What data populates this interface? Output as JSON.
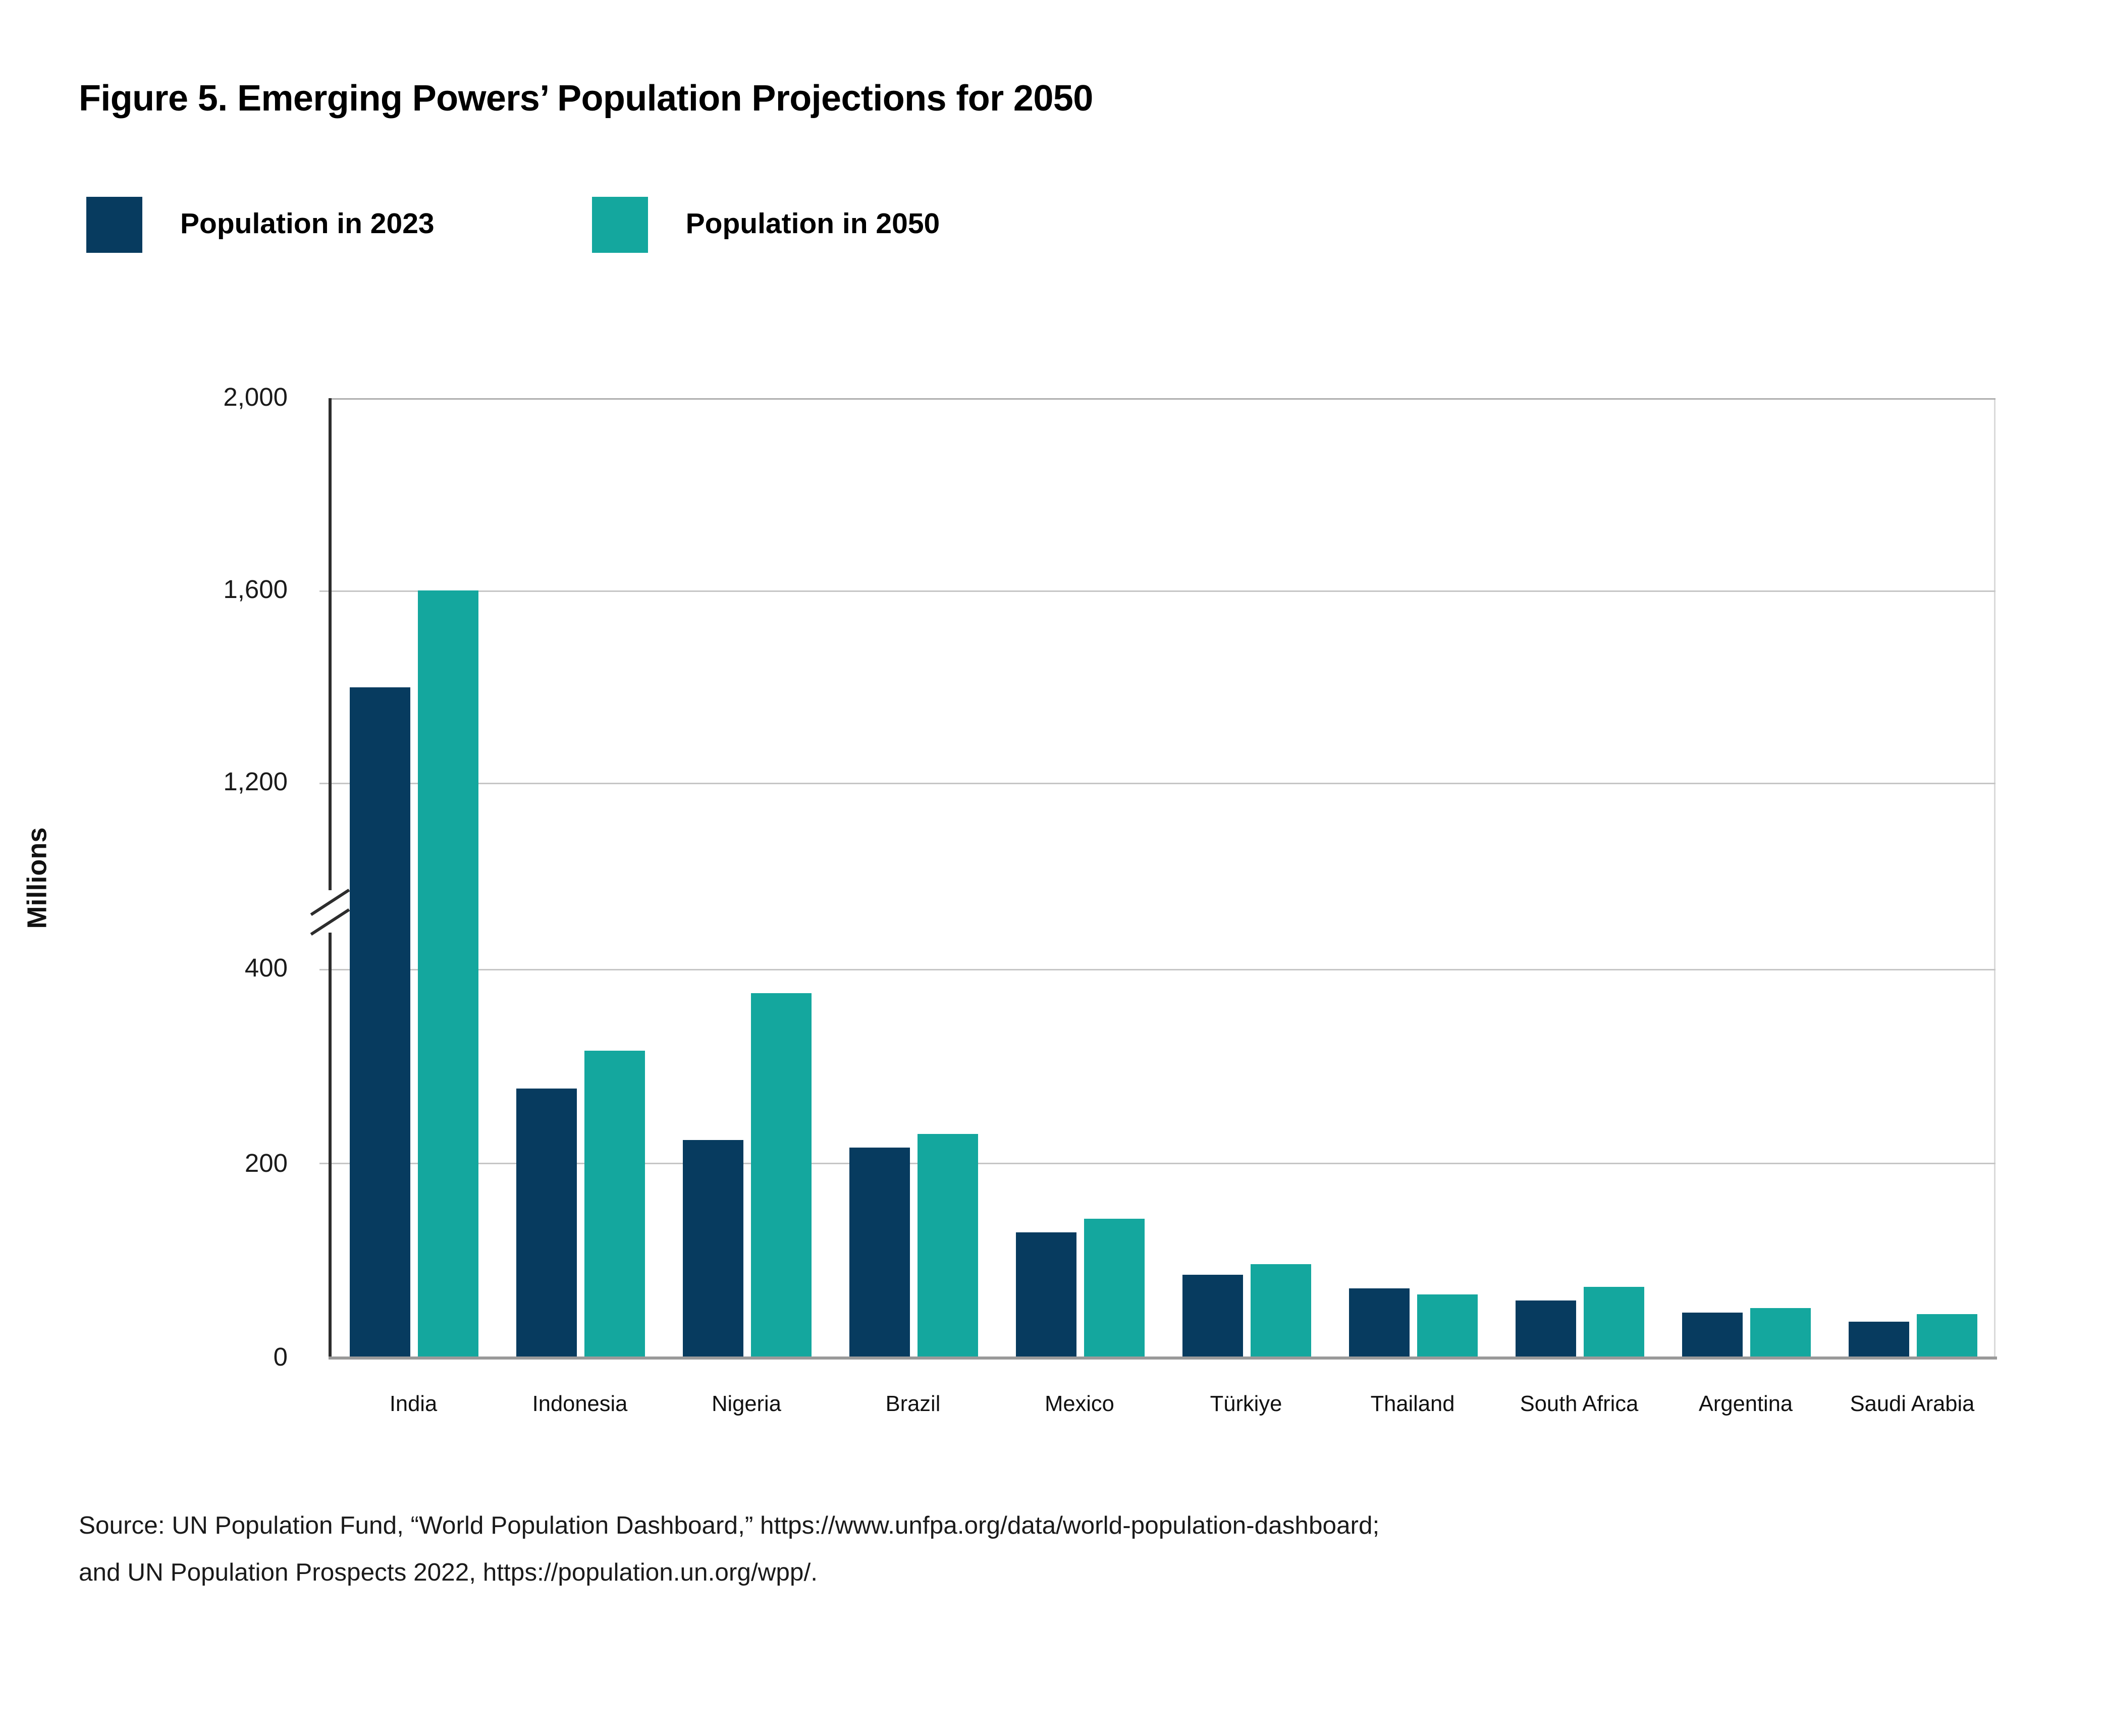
{
  "figure": {
    "title": "Figure 5. Emerging Powers’ Population Projections for 2050"
  },
  "legend": [
    {
      "label": "Population in 2023",
      "color": "#073B5F"
    },
    {
      "label": "Population in 2050",
      "color": "#14A79E"
    }
  ],
  "chart_data": {
    "type": "bar",
    "title": "Figure 5. Emerging Powers’ Population Projections for 2050",
    "xlabel": "",
    "ylabel": "Millions",
    "ylim": [
      0,
      2000
    ],
    "grid": "horizontal",
    "legend_position": "top-left",
    "categories": [
      "India",
      "Indonesia",
      "Nigeria",
      "Brazil",
      "Mexico",
      "Türkiye",
      "Thailand",
      "South Africa",
      "Argentina",
      "Saudi Arabia"
    ],
    "series": [
      {
        "name": "Population in 2023",
        "color": "#073B5F",
        "values": [
          1400,
          277,
          224,
          216,
          129,
          86,
          72,
          60,
          46,
          37
        ]
      },
      {
        "name": "Population in 2050",
        "color": "#14A79E",
        "values": [
          1600,
          317,
          375,
          231,
          144,
          96,
          66,
          74,
          52,
          45
        ]
      }
    ],
    "yticks": [
      {
        "value": 0,
        "label": "0"
      },
      {
        "value": 200,
        "label": "200"
      },
      {
        "value": 400,
        "label": "400"
      },
      {
        "value": 1200,
        "label": "1,200"
      },
      {
        "value": 1600,
        "label": "1,600"
      },
      {
        "value": 2000,
        "label": "2,000"
      }
    ],
    "axis_break": {
      "between": [
        400,
        1200
      ],
      "lower_segment_top_fraction": 0.405,
      "upper_segment_bottom_fraction": 0.599,
      "break_center_fraction": 0.465
    }
  },
  "source": {
    "line1": "Source: UN Population Fund, “World Population Dashboard,” https://www.unfpa.org/data/world-population-dashboard;",
    "line2": "and UN Population Prospects 2022,  https://population.un.org/wpp/."
  }
}
